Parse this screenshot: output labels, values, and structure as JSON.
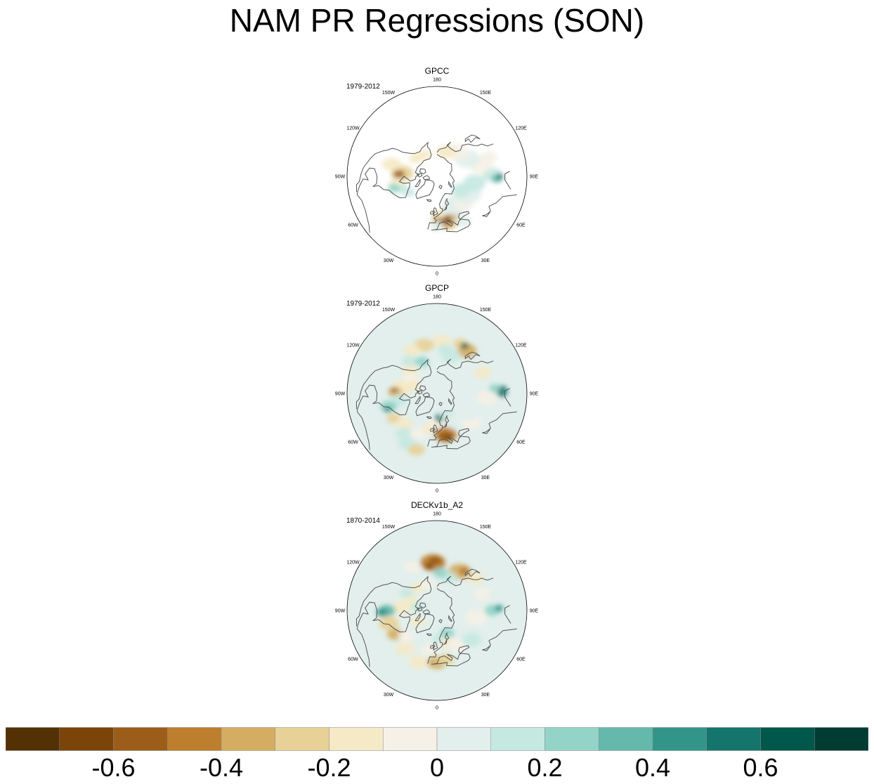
{
  "title": "NAM PR Regressions (SON)",
  "panels": [
    {
      "name": "GPCC",
      "period": "1979-2012"
    },
    {
      "name": "GPCP",
      "period": "1979-2012"
    },
    {
      "name": "DECKv1b_A2",
      "period": "1870-2014"
    }
  ],
  "lon_labels": [
    "180",
    "150E",
    "120E",
    "90E",
    "60E",
    "30E",
    "0",
    "30W",
    "60W",
    "90W",
    "120W",
    "150W"
  ],
  "colors": {
    "levels": [
      "#543005",
      "#7b4408",
      "#9b5d19",
      "#bd7e2d",
      "#d4ad63",
      "#e7d196",
      "#f5e9c6",
      "#f5f1e6",
      "#e2efec",
      "#c5e8e1",
      "#93d3c8",
      "#65b9ac",
      "#33958a",
      "#14756c",
      "#00574c",
      "#003c32"
    ],
    "ocean_unmasked": "#e2efec",
    "masked": "#ffffff",
    "coast": "#555555"
  },
  "chart_data": {
    "type": "heatmap",
    "title": "NAM PR Regressions (SON)",
    "projection": "north polar stereographic",
    "colorbar": {
      "levels": [
        -0.7,
        -0.6,
        -0.5,
        -0.4,
        -0.3,
        -0.2,
        -0.1,
        0,
        0.1,
        0.2,
        0.3,
        0.4,
        0.5,
        0.6,
        0.7
      ],
      "tick_labels": [
        "-0.6",
        "-0.4",
        "-0.2",
        "0",
        "0.2",
        "0.4",
        "0.6"
      ],
      "tick_values": [
        -0.6,
        -0.4,
        -0.2,
        0,
        0.2,
        0.4,
        0.6
      ]
    },
    "panels": [
      {
        "dataset": "GPCC",
        "period": "1979-2012",
        "land_only": true
      },
      {
        "dataset": "GPCP",
        "period": "1979-2012",
        "land_only": false
      },
      {
        "dataset": "DECKv1b_A2",
        "period": "1870-2014",
        "land_only": false
      }
    ]
  }
}
